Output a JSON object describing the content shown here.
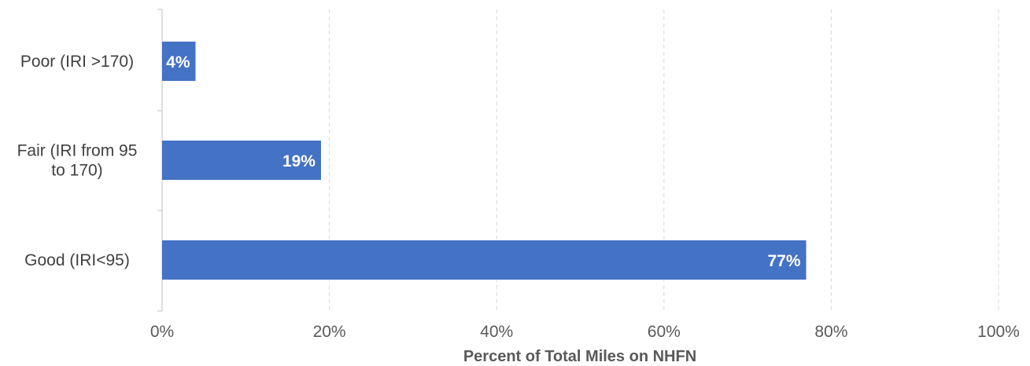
{
  "chart_data": {
    "type": "bar",
    "orientation": "horizontal",
    "categories": [
      "Poor (IRI >170)",
      "Fair (IRI from 95 to 170)",
      "Good (IRI<95)"
    ],
    "category_label_lines": [
      [
        "Poor (IRI >170)"
      ],
      [
        "Fair (IRI from 95",
        "to 170)"
      ],
      [
        "Good (IRI<95)"
      ]
    ],
    "values": [
      4,
      19,
      77
    ],
    "data_labels": [
      "4%",
      "19%",
      "77%"
    ],
    "xlabel": "Percent of Total Miles on NHFN",
    "ylabel": "",
    "xlim": [
      0,
      100
    ],
    "x_ticks": [
      0,
      20,
      40,
      60,
      80,
      100
    ],
    "x_tick_labels": [
      "0%",
      "20%",
      "40%",
      "60%",
      "80%",
      "100%"
    ],
    "grid": "vertical dashed",
    "legend": "none",
    "bar_color": "#4472C4",
    "grid_color": "#D9D9D9",
    "axis_color": "#BFBFBF"
  }
}
